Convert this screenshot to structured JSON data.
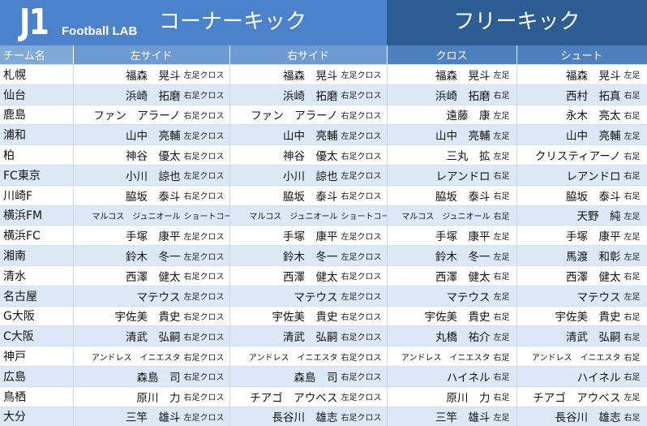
{
  "banner": {
    "logo_main": "J1",
    "logo_sub": "Football LAB",
    "title_ck": "コーナーキック",
    "title_fk": "フリーキック"
  },
  "headers": {
    "team": "チーム名",
    "ck_left": "左サイド",
    "ck_right": "右サイド",
    "fk_cross": "クロス",
    "fk_shoot": "シュート"
  },
  "rows": [
    {
      "team": "札幌",
      "ck_left": "福森　晃斗",
      "ck_left_type": "左足クロス",
      "ck_right": "福森　晃斗",
      "ck_right_type": "左足クロス",
      "fk_cross": "福森　晃斗",
      "fk_cross_type": "左足",
      "fk_shoot": "福森　晃斗",
      "fk_shoot_type": "左足"
    },
    {
      "team": "仙台",
      "ck_left": "浜崎　拓磨",
      "ck_left_type": "右足クロス",
      "ck_right": "浜崎　拓磨",
      "ck_right_type": "右足クロス",
      "fk_cross": "浜崎　拓磨",
      "fk_cross_type": "右足",
      "fk_shoot": "西村　拓真",
      "fk_shoot_type": "右足"
    },
    {
      "team": "鹿島",
      "ck_left": "ファン　アラーノ",
      "ck_left_type": "右足クロス",
      "ck_right": "ファン　アラーノ",
      "ck_right_type": "右足クロス",
      "fk_cross": "遠藤　康",
      "fk_cross_type": "左足",
      "fk_shoot": "永木　亮太",
      "fk_shoot_type": "右足"
    },
    {
      "team": "浦和",
      "ck_left": "山中　亮輔",
      "ck_left_type": "左足クロス",
      "ck_right": "山中　亮輔",
      "ck_right_type": "左足クロス",
      "fk_cross": "山中　亮輔",
      "fk_cross_type": "左足",
      "fk_shoot": "山中　亮輔",
      "fk_shoot_type": "左足"
    },
    {
      "team": "柏",
      "ck_left": "神谷　優太",
      "ck_left_type": "右足クロス",
      "ck_right": "神谷　優太",
      "ck_right_type": "右足クロス",
      "fk_cross": "三丸　拡",
      "fk_cross_type": "左足",
      "fk_shoot": "クリスティアーノ",
      "fk_shoot_type": "右足"
    },
    {
      "team": "FC東京",
      "ck_left": "小川　諒也",
      "ck_left_type": "左足クロス",
      "ck_right": "小川　諒也",
      "ck_right_type": "左足クロス",
      "fk_cross": "レアンドロ",
      "fk_cross_type": "右足",
      "fk_shoot": "レアンドロ",
      "fk_shoot_type": "右足"
    },
    {
      "team": "川崎F",
      "ck_left": "脇坂　泰斗",
      "ck_left_type": "右足クロス",
      "ck_right": "脇坂　泰斗",
      "ck_right_type": "右足クロス",
      "fk_cross": "脇坂　泰斗",
      "fk_cross_type": "右足",
      "fk_shoot": "脇坂　泰斗",
      "fk_shoot_type": "右足"
    },
    {
      "team": "横浜FM",
      "ck_left": "マルコス　ジュニオール",
      "ck_left_type": "ショートコーナー",
      "ck_right": "マルコス　ジュニオール",
      "ck_right_type": "ショートコーナー",
      "fk_cross": "マルコス　ジュニオール",
      "fk_cross_type": "右足",
      "fk_shoot": "天野　純",
      "fk_shoot_type": "左足"
    },
    {
      "team": "横浜FC",
      "ck_left": "手塚　康平",
      "ck_left_type": "左足クロス",
      "ck_right": "手塚　康平",
      "ck_right_type": "左足クロス",
      "fk_cross": "手塚　康平",
      "fk_cross_type": "左足",
      "fk_shoot": "手塚　康平",
      "fk_shoot_type": "左足"
    },
    {
      "team": "湘南",
      "ck_left": "鈴木　冬一",
      "ck_left_type": "左足クロス",
      "ck_right": "鈴木　冬一",
      "ck_right_type": "左足クロス",
      "fk_cross": "鈴木　冬一",
      "fk_cross_type": "左足",
      "fk_shoot": "馬渡　和彰",
      "fk_shoot_type": "左足"
    },
    {
      "team": "清水",
      "ck_left": "西澤　健太",
      "ck_left_type": "右足クロス",
      "ck_right": "西澤　健太",
      "ck_right_type": "右足クロス",
      "fk_cross": "西澤　健太",
      "fk_cross_type": "右足",
      "fk_shoot": "西澤　健太",
      "fk_shoot_type": "右足"
    },
    {
      "team": "名古屋",
      "ck_left": "マテウス",
      "ck_left_type": "左足クロス",
      "ck_right": "マテウス",
      "ck_right_type": "左足クロス",
      "fk_cross": "マテウス",
      "fk_cross_type": "左足",
      "fk_shoot": "マテウス",
      "fk_shoot_type": "左足"
    },
    {
      "team": "G大阪",
      "ck_left": "宇佐美　貴史",
      "ck_left_type": "右足クロス",
      "ck_right": "宇佐美　貴史",
      "ck_right_type": "右足クロス",
      "fk_cross": "宇佐美　貴史",
      "fk_cross_type": "右足",
      "fk_shoot": "宇佐美　貴史",
      "fk_shoot_type": "右足"
    },
    {
      "team": "C大阪",
      "ck_left": "清武　弘嗣",
      "ck_left_type": "右足クロス",
      "ck_right": "清武　弘嗣",
      "ck_right_type": "右足クロス",
      "fk_cross": "丸橋　祐介",
      "fk_cross_type": "左足",
      "fk_shoot": "清武　弘嗣",
      "fk_shoot_type": "右足"
    },
    {
      "team": "神戸",
      "ck_left": "アンドレス　イニエスタ",
      "ck_left_type": "右足クロス",
      "ck_right": "アンドレス　イニエスタ",
      "ck_right_type": "右足クロス",
      "fk_cross": "アンドレス　イニエスタ",
      "fk_cross_type": "右足",
      "fk_shoot": "アンドレス　イニエスタ",
      "fk_shoot_type": "右足"
    },
    {
      "team": "広島",
      "ck_left": "森島　司",
      "ck_left_type": "右足クロス",
      "ck_right": "森島　司",
      "ck_right_type": "右足クロス",
      "fk_cross": "ハイネル",
      "fk_cross_type": "右足",
      "fk_shoot": "ハイネル",
      "fk_shoot_type": "右足"
    },
    {
      "team": "鳥栖",
      "ck_left": "原川　力",
      "ck_left_type": "右足クロス",
      "ck_right": "チアゴ　アウベス",
      "ck_right_type": "左足クロス",
      "fk_cross": "原川　力",
      "fk_cross_type": "右足",
      "fk_shoot": "チアゴ　アウベス",
      "fk_shoot_type": "左足"
    },
    {
      "team": "大分",
      "ck_left": "三竿　雄斗",
      "ck_left_type": "左足クロス",
      "ck_right": "長谷川　雄志",
      "ck_right_type": "右足クロス",
      "fk_cross": "三竿　雄斗",
      "fk_cross_type": "左足",
      "fk_shoot": "長谷川　雄志",
      "fk_shoot_type": "右足"
    }
  ]
}
